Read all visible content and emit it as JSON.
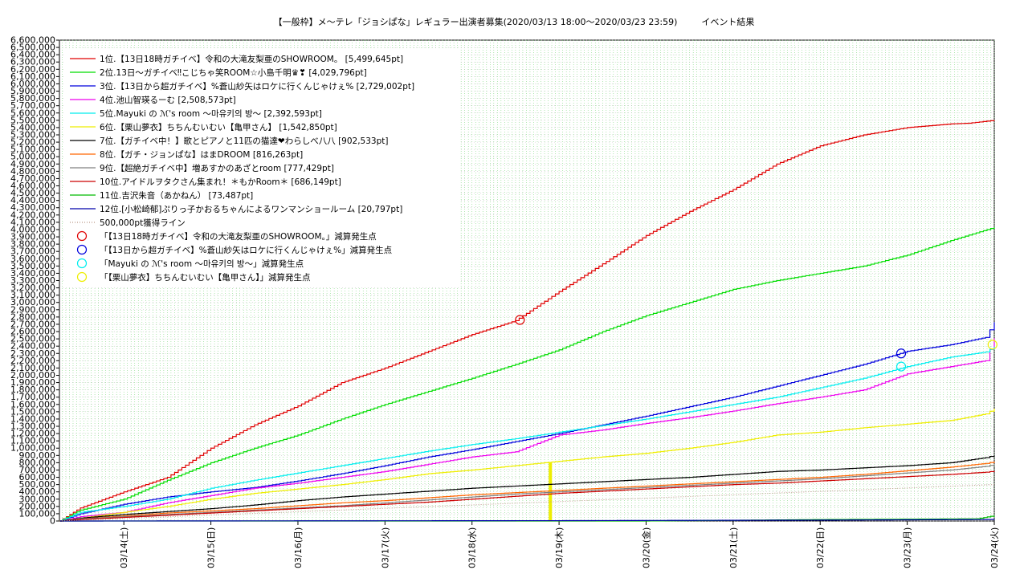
{
  "chart_data": {
    "type": "line",
    "title": "【一般枠】メ～テレ「ジョシぱな」レギュラー出演者募集(2020/03/13 18:00～2020/03/23 23:59)",
    "subtitle": "イベント結果",
    "xlabel": "",
    "ylabel": "",
    "ylim": [
      0,
      6600000
    ],
    "y_tick_step": 100000,
    "x_ticks": [
      "03/14(土)",
      "03/15(日)",
      "03/16(月)",
      "03/17(火)",
      "03/18(水)",
      "03/19(木)",
      "03/20(金)",
      "03/21(土)",
      "03/22(日)",
      "03/23(月)",
      "03/24(火)"
    ],
    "x_tick_days": [
      1,
      2,
      3,
      4,
      5,
      6,
      7,
      8,
      9,
      10,
      11
    ],
    "xlim_days": [
      0.26,
      11.0
    ],
    "grid": true,
    "legend_placement": "top-left",
    "series": [
      {
        "name": "1位.【13日18時ガチイベ】令和の大滝友梨亜のSHOWROOM。 [5,499,645pt]",
        "color": "#e00000",
        "style": "step",
        "points": [
          [
            0.26,
            0
          ],
          [
            0.5,
            180000
          ],
          [
            1.0,
            400000
          ],
          [
            1.5,
            600000
          ],
          [
            2.0,
            1000000
          ],
          [
            2.5,
            1320000
          ],
          [
            3.0,
            1580000
          ],
          [
            3.5,
            1900000
          ],
          [
            4.0,
            2100000
          ],
          [
            4.5,
            2330000
          ],
          [
            5.0,
            2560000
          ],
          [
            5.5,
            2750000
          ],
          [
            6.0,
            3150000
          ],
          [
            6.5,
            3530000
          ],
          [
            7.0,
            3920000
          ],
          [
            7.5,
            4250000
          ],
          [
            8.0,
            4550000
          ],
          [
            8.5,
            4900000
          ],
          [
            9.0,
            5150000
          ],
          [
            9.5,
            5300000
          ],
          [
            10.0,
            5400000
          ],
          [
            10.5,
            5450000
          ],
          [
            10.7,
            5460000
          ],
          [
            11.0,
            5499645
          ]
        ]
      },
      {
        "name": "2位.13日～ガチイベ‼こじちゃ笑ROOM☆小島千明♛❣ [4,029,796pt]",
        "color": "#00dd00",
        "style": "step",
        "points": [
          [
            0.26,
            0
          ],
          [
            0.5,
            150000
          ],
          [
            1.0,
            300000
          ],
          [
            1.5,
            560000
          ],
          [
            2.0,
            800000
          ],
          [
            2.5,
            1000000
          ],
          [
            3.0,
            1180000
          ],
          [
            3.5,
            1400000
          ],
          [
            4.0,
            1600000
          ],
          [
            4.5,
            1780000
          ],
          [
            5.0,
            1960000
          ],
          [
            5.5,
            2150000
          ],
          [
            6.0,
            2350000
          ],
          [
            6.5,
            2600000
          ],
          [
            7.0,
            2820000
          ],
          [
            7.5,
            3000000
          ],
          [
            8.0,
            3180000
          ],
          [
            8.5,
            3300000
          ],
          [
            9.0,
            3400000
          ],
          [
            9.5,
            3500000
          ],
          [
            10.0,
            3650000
          ],
          [
            10.5,
            3850000
          ],
          [
            11.0,
            4029796
          ]
        ]
      },
      {
        "name": "3位.【13日から超ガチイベ】%蒼山紗矢はロケに行くんじゃけぇ% [2,729,002pt]",
        "color": "#0000dd",
        "style": "step",
        "points": [
          [
            0.26,
            0
          ],
          [
            0.5,
            100000
          ],
          [
            1.0,
            230000
          ],
          [
            1.5,
            330000
          ],
          [
            2.0,
            400000
          ],
          [
            2.5,
            460000
          ],
          [
            3.0,
            550000
          ],
          [
            3.5,
            650000
          ],
          [
            4.0,
            760000
          ],
          [
            4.5,
            880000
          ],
          [
            5.0,
            980000
          ],
          [
            5.5,
            1090000
          ],
          [
            6.0,
            1200000
          ],
          [
            6.5,
            1320000
          ],
          [
            7.0,
            1440000
          ],
          [
            7.5,
            1570000
          ],
          [
            8.0,
            1700000
          ],
          [
            8.5,
            1850000
          ],
          [
            9.0,
            2000000
          ],
          [
            9.5,
            2150000
          ],
          [
            10.0,
            2330000
          ],
          [
            10.5,
            2420000
          ],
          [
            10.9,
            2520000
          ],
          [
            11.0,
            2729002
          ]
        ]
      },
      {
        "name": "4位.池山智瑛るーむ [2,508,573pt]",
        "color": "#ee00ee",
        "style": "step",
        "points": [
          [
            0.26,
            0
          ],
          [
            0.5,
            60000
          ],
          [
            1.0,
            120000
          ],
          [
            1.5,
            250000
          ],
          [
            2.0,
            350000
          ],
          [
            2.5,
            450000
          ],
          [
            3.0,
            520000
          ],
          [
            3.5,
            600000
          ],
          [
            4.0,
            680000
          ],
          [
            4.5,
            780000
          ],
          [
            5.0,
            880000
          ],
          [
            5.5,
            950000
          ],
          [
            6.0,
            1180000
          ],
          [
            6.5,
            1250000
          ],
          [
            7.0,
            1340000
          ],
          [
            7.5,
            1420000
          ],
          [
            8.0,
            1510000
          ],
          [
            8.5,
            1610000
          ],
          [
            9.0,
            1700000
          ],
          [
            9.5,
            1800000
          ],
          [
            10.0,
            2020000
          ],
          [
            10.5,
            2120000
          ],
          [
            10.9,
            2200000
          ],
          [
            11.0,
            2508573
          ]
        ]
      },
      {
        "name": "5位.Mayuki の ℳ's room ～마유키의 방～ [2,392,593pt]",
        "color": "#00eeee",
        "style": "step",
        "points": [
          [
            0.26,
            0
          ],
          [
            0.5,
            120000
          ],
          [
            1.0,
            200000
          ],
          [
            1.5,
            300000
          ],
          [
            2.0,
            450000
          ],
          [
            2.5,
            560000
          ],
          [
            3.0,
            660000
          ],
          [
            3.5,
            760000
          ],
          [
            4.0,
            860000
          ],
          [
            4.5,
            960000
          ],
          [
            5.0,
            1050000
          ],
          [
            5.5,
            1130000
          ],
          [
            6.0,
            1220000
          ],
          [
            6.5,
            1310000
          ],
          [
            7.0,
            1400000
          ],
          [
            7.5,
            1500000
          ],
          [
            8.0,
            1600000
          ],
          [
            8.5,
            1700000
          ],
          [
            9.0,
            1830000
          ],
          [
            9.5,
            1960000
          ],
          [
            10.0,
            2120000
          ],
          [
            10.5,
            2250000
          ],
          [
            10.9,
            2320000
          ],
          [
            11.0,
            2392593
          ]
        ]
      },
      {
        "name": "6位.【栗山夢衣】ちちんむいむい【亀甲さん】 [1,542,850pt]",
        "color": "#eeee00",
        "style": "step",
        "points": [
          [
            0.26,
            0
          ],
          [
            0.5,
            40000
          ],
          [
            1.0,
            120000
          ],
          [
            1.5,
            200000
          ],
          [
            2.0,
            300000
          ],
          [
            2.5,
            380000
          ],
          [
            3.0,
            440000
          ],
          [
            3.5,
            500000
          ],
          [
            4.0,
            570000
          ],
          [
            4.5,
            650000
          ],
          [
            5.0,
            700000
          ],
          [
            5.5,
            760000
          ],
          [
            6.0,
            820000
          ],
          [
            6.5,
            880000
          ],
          [
            7.0,
            930000
          ],
          [
            7.5,
            1000000
          ],
          [
            8.0,
            1080000
          ],
          [
            8.5,
            1180000
          ],
          [
            9.0,
            1220000
          ],
          [
            9.5,
            1280000
          ],
          [
            10.0,
            1330000
          ],
          [
            10.5,
            1380000
          ],
          [
            10.9,
            1470000
          ],
          [
            11.0,
            1542850
          ]
        ]
      },
      {
        "name": "7位.【ガチイベ中！】歌とピアノと11匹の猫達❤わらしべ八八 [902,533pt]",
        "color": "#000000",
        "style": "step",
        "points": [
          [
            0.26,
            0
          ],
          [
            0.5,
            40000
          ],
          [
            1.0,
            90000
          ],
          [
            1.5,
            130000
          ],
          [
            2.0,
            170000
          ],
          [
            2.5,
            220000
          ],
          [
            3.0,
            280000
          ],
          [
            3.5,
            330000
          ],
          [
            4.0,
            370000
          ],
          [
            4.5,
            410000
          ],
          [
            5.0,
            450000
          ],
          [
            5.5,
            480000
          ],
          [
            6.0,
            510000
          ],
          [
            6.5,
            540000
          ],
          [
            7.0,
            570000
          ],
          [
            7.5,
            600000
          ],
          [
            8.0,
            640000
          ],
          [
            8.5,
            680000
          ],
          [
            9.0,
            700000
          ],
          [
            9.5,
            730000
          ],
          [
            10.0,
            760000
          ],
          [
            10.5,
            800000
          ],
          [
            10.9,
            870000
          ],
          [
            11.0,
            902533
          ]
        ]
      },
      {
        "name": "8位.【ガチ・ジョンぱな】はまDROOM [816,263pt]",
        "color": "#ff6600",
        "style": "step",
        "points": [
          [
            0.26,
            0
          ],
          [
            0.5,
            30000
          ],
          [
            1.0,
            70000
          ],
          [
            1.5,
            110000
          ],
          [
            2.0,
            140000
          ],
          [
            2.5,
            170000
          ],
          [
            3.0,
            210000
          ],
          [
            3.5,
            250000
          ],
          [
            4.0,
            280000
          ],
          [
            4.5,
            320000
          ],
          [
            5.0,
            360000
          ],
          [
            5.5,
            390000
          ],
          [
            6.0,
            420000
          ],
          [
            6.5,
            450000
          ],
          [
            7.0,
            480000
          ],
          [
            7.5,
            510000
          ],
          [
            8.0,
            540000
          ],
          [
            8.5,
            570000
          ],
          [
            9.0,
            600000
          ],
          [
            9.5,
            640000
          ],
          [
            10.0,
            690000
          ],
          [
            10.5,
            740000
          ],
          [
            10.9,
            790000
          ],
          [
            11.0,
            816263
          ]
        ]
      },
      {
        "name": "9位.【超絶ガチイベ中】増あすかのあざとroom [777,429pt]",
        "color": "#808080",
        "style": "step",
        "points": [
          [
            0.26,
            0
          ],
          [
            0.5,
            30000
          ],
          [
            1.0,
            60000
          ],
          [
            1.5,
            90000
          ],
          [
            2.0,
            120000
          ],
          [
            2.5,
            150000
          ],
          [
            3.0,
            180000
          ],
          [
            3.5,
            210000
          ],
          [
            4.0,
            250000
          ],
          [
            4.5,
            290000
          ],
          [
            5.0,
            330000
          ],
          [
            5.5,
            370000
          ],
          [
            6.0,
            400000
          ],
          [
            6.5,
            430000
          ],
          [
            7.0,
            460000
          ],
          [
            7.5,
            490000
          ],
          [
            8.0,
            520000
          ],
          [
            8.5,
            550000
          ],
          [
            9.0,
            580000
          ],
          [
            9.5,
            620000
          ],
          [
            10.0,
            660000
          ],
          [
            10.5,
            700000
          ],
          [
            10.9,
            750000
          ],
          [
            11.0,
            777429
          ]
        ]
      },
      {
        "name": "10位.アイドルヲタクさん集まれ！＊もかRoom＊ [686,149pt]",
        "color": "#cc0000",
        "style": "step",
        "points": [
          [
            0.26,
            0
          ],
          [
            0.5,
            20000
          ],
          [
            1.0,
            50000
          ],
          [
            1.5,
            80000
          ],
          [
            2.0,
            110000
          ],
          [
            2.5,
            140000
          ],
          [
            3.0,
            170000
          ],
          [
            3.5,
            200000
          ],
          [
            4.0,
            230000
          ],
          [
            4.5,
            260000
          ],
          [
            5.0,
            300000
          ],
          [
            5.5,
            340000
          ],
          [
            6.0,
            380000
          ],
          [
            6.5,
            410000
          ],
          [
            7.0,
            440000
          ],
          [
            7.5,
            470000
          ],
          [
            8.0,
            500000
          ],
          [
            8.5,
            520000
          ],
          [
            9.0,
            550000
          ],
          [
            9.5,
            580000
          ],
          [
            10.0,
            610000
          ],
          [
            10.5,
            640000
          ],
          [
            10.9,
            670000
          ],
          [
            11.0,
            686149
          ]
        ]
      },
      {
        "name": "11位.吉沢朱音（あかねん） [73,487pt]",
        "color": "#00bb00",
        "style": "step",
        "points": [
          [
            0.26,
            0
          ],
          [
            7.0,
            0
          ],
          [
            8.0,
            10000
          ],
          [
            9.0,
            20000
          ],
          [
            10.0,
            25000
          ],
          [
            10.8,
            30000
          ],
          [
            11.0,
            73487
          ]
        ]
      },
      {
        "name": "12位.[小松崎郁]ぷりっ子かおるちゃんによるワンマンショールーム [20,797pt]",
        "color": "#0000aa",
        "style": "step",
        "points": [
          [
            0.26,
            0
          ],
          [
            6.0,
            5000
          ],
          [
            9.0,
            12000
          ],
          [
            11.0,
            20797
          ]
        ]
      },
      {
        "name": "500,000pt獲得ライン",
        "color": "#bb9988",
        "style": "dotted",
        "points": [
          [
            0.26,
            0
          ],
          [
            11.0,
            500000
          ]
        ]
      }
    ],
    "markers": [
      {
        "name": "「【13日18時ガチイベ】令和の大滝友梨亜のSHOWROOM。」減算発生点",
        "color": "#e00000",
        "x": 5.55,
        "y": 2760000
      },
      {
        "name": "「【13日から超ガチイベ】%蒼山紗矢はロケに行くんじゃけぇ%」減算発生点",
        "color": "#0000dd",
        "x": 9.93,
        "y": 2300000
      },
      {
        "name": "「Mayuki の ℳ's room ～마유키의 방～」減算発生点",
        "color": "#00eeee",
        "x": 9.93,
        "y": 2120000
      },
      {
        "name": "「【栗山夢衣】ちちんむいむい【亀甲さん】」減算発生点",
        "color": "#eeee00",
        "x": 10.98,
        "y": 2420000
      }
    ],
    "yellow_bar": {
      "x": 5.9,
      "y": 800000,
      "color": "#eeee00"
    }
  }
}
